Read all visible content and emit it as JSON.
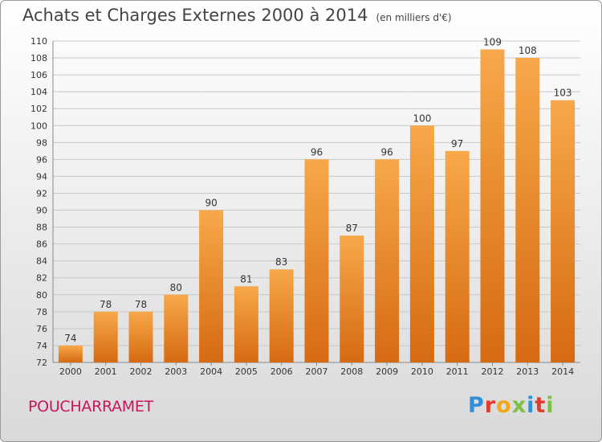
{
  "header": {
    "title": "Achats et Charges Externes 2000 à 2014",
    "unit": "(en milliers d'€)"
  },
  "footer": {
    "town": "POUCHARRAMET",
    "brand": "Proxiti",
    "brand_colors": [
      "#2f8fd8",
      "#e23b2e",
      "#f2a81d",
      "#7cc142",
      "#2f8fd8",
      "#e23b2e",
      "#7cc142"
    ]
  },
  "colors": {
    "bar_light": "#f7a84a",
    "bar_dark": "#d66a12",
    "grid": "#c8c8c8",
    "title": "#444444",
    "town": "#c8155b"
  },
  "chart_data": {
    "type": "bar",
    "title": "Achats et Charges Externes 2000 à 2014",
    "subtitle": "(en milliers d'€)",
    "xlabel": "",
    "ylabel": "",
    "categories": [
      "2000",
      "2001",
      "2002",
      "2003",
      "2004",
      "2005",
      "2006",
      "2007",
      "2008",
      "2009",
      "2010",
      "2011",
      "2012",
      "2013",
      "2014"
    ],
    "values": [
      74,
      78,
      78,
      80,
      90,
      81,
      83,
      96,
      87,
      96,
      100,
      97,
      109,
      108,
      103
    ],
    "ylim": [
      72,
      110
    ],
    "ytick_step": 2,
    "grid": true,
    "legend": "none"
  }
}
